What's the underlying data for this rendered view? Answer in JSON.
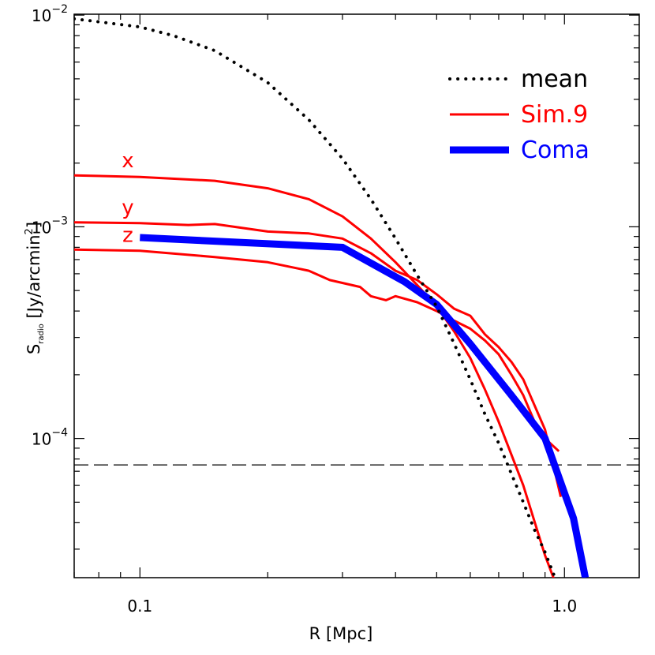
{
  "chart_data": {
    "type": "line",
    "xlabel": "R [Mpc]",
    "ylabel_main": "S",
    "ylabel_sub": "radio",
    "ylabel_rest": " [Jy/arcmin",
    "ylabel_sup": "2",
    "ylabel_end": "]",
    "x_scale": "log",
    "y_scale": "log",
    "xlim": [
      0.07,
      1.5
    ],
    "ylim": [
      2.2e-05,
      0.0101
    ],
    "x_ticks": [
      {
        "value": 0.1,
        "label": "0.1"
      },
      {
        "value": 1.0,
        "label": "1.0"
      }
    ],
    "y_ticks": [
      {
        "value": 0.0001,
        "base": "10",
        "exp": "−4"
      },
      {
        "value": 0.001,
        "base": "10",
        "exp": "−3"
      },
      {
        "value": 0.01,
        "base": "10",
        "exp": "−2"
      }
    ],
    "threshold": {
      "value": 7.5e-05,
      "style": "dashed",
      "color": "#000000"
    },
    "grid": false,
    "legend_placement": "top-right",
    "legend": [
      {
        "label": "mean",
        "color": "#000000",
        "style": "dotted"
      },
      {
        "label": "Sim.9",
        "color": "#ff0000",
        "style": "solid"
      },
      {
        "label": "Coma",
        "color": "#0000ff",
        "style": "thick"
      }
    ],
    "series": [
      {
        "label": "x",
        "color": "#ff0000",
        "style": "solid",
        "x": [
          0.07,
          0.1,
          0.15,
          0.2,
          0.25,
          0.3,
          0.35,
          0.4,
          0.45,
          0.5,
          0.55,
          0.6,
          0.65,
          0.7,
          0.8,
          0.9,
          0.95
        ],
        "y": [
          0.00175,
          0.00172,
          0.00165,
          0.00152,
          0.00135,
          0.00112,
          0.00088,
          0.00068,
          0.00053,
          0.00042,
          0.00032,
          0.00024,
          0.00017,
          0.00012,
          6e-05,
          2.8e-05,
          2.1e-05
        ]
      },
      {
        "label": "y",
        "color": "#ff0000",
        "style": "solid",
        "x": [
          0.07,
          0.1,
          0.13,
          0.15,
          0.2,
          0.25,
          0.3,
          0.35,
          0.4,
          0.45,
          0.5,
          0.55,
          0.6,
          0.65,
          0.7,
          0.75,
          0.8,
          0.9,
          0.98
        ],
        "y": [
          0.00105,
          0.00104,
          0.00102,
          0.00103,
          0.00095,
          0.00093,
          0.00088,
          0.00075,
          0.00062,
          0.00056,
          0.00048,
          0.00041,
          0.00038,
          0.00031,
          0.00027,
          0.00023,
          0.00019,
          0.00011,
          5.3e-05
        ]
      },
      {
        "label": "z",
        "color": "#ff0000",
        "style": "solid",
        "x": [
          0.07,
          0.1,
          0.15,
          0.2,
          0.25,
          0.28,
          0.33,
          0.35,
          0.38,
          0.4,
          0.45,
          0.5,
          0.55,
          0.6,
          0.65,
          0.7,
          0.75,
          0.8,
          0.85,
          0.9,
          0.97
        ],
        "y": [
          0.00078,
          0.00077,
          0.00072,
          0.00068,
          0.00062,
          0.00056,
          0.00052,
          0.00047,
          0.00045,
          0.00047,
          0.00044,
          0.0004,
          0.00036,
          0.00033,
          0.00029,
          0.00025,
          0.0002,
          0.00016,
          0.00012,
          0.0001,
          8.7e-05
        ]
      },
      {
        "label": "Coma",
        "color": "#0000ff",
        "style": "thick",
        "x": [
          0.1,
          0.3,
          0.42,
          0.5,
          0.6,
          0.75,
          0.9,
          1.05,
          1.12
        ],
        "y": [
          0.00089,
          0.0008,
          0.00055,
          0.00043,
          0.00028,
          0.00016,
          0.0001,
          4.2e-05,
          2.2e-05
        ]
      },
      {
        "label": "mean",
        "color": "#000000",
        "style": "dotted",
        "x": [
          0.07,
          0.08,
          0.1,
          0.12,
          0.15,
          0.2,
          0.25,
          0.3,
          0.35,
          0.4,
          0.45,
          0.5,
          0.55,
          0.6,
          0.65,
          0.7,
          0.75,
          0.8,
          0.85,
          0.9,
          0.95
        ],
        "y": [
          0.0096,
          0.0093,
          0.0088,
          0.008,
          0.0068,
          0.0048,
          0.0032,
          0.0021,
          0.00135,
          0.00088,
          0.00059,
          0.00042,
          0.00028,
          0.00019,
          0.00013,
          9.5e-05,
          6.8e-05,
          5e-05,
          3.7e-05,
          2.9e-05,
          2.2e-05
        ]
      }
    ]
  }
}
